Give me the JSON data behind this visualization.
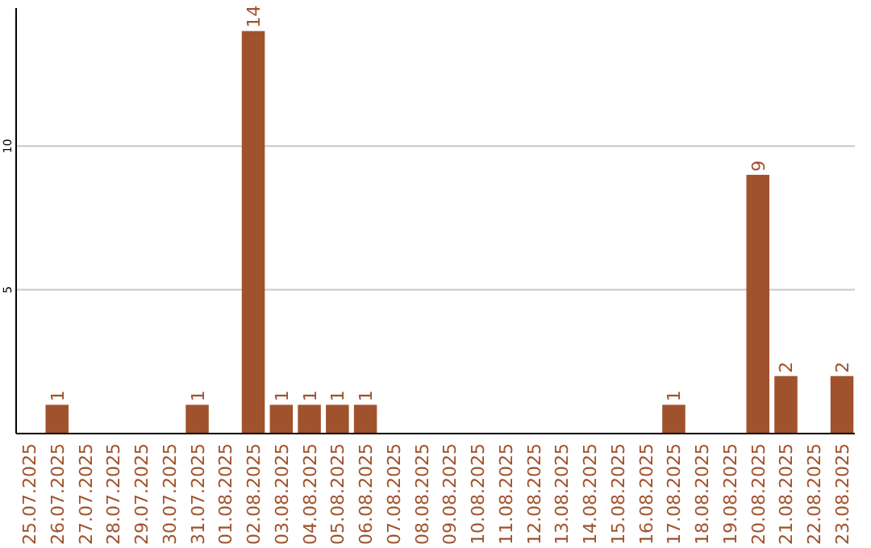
{
  "chart_data": {
    "type": "bar",
    "categories": [
      "25.07.2025",
      "26.07.2025",
      "27.07.2025",
      "28.07.2025",
      "29.07.2025",
      "30.07.2025",
      "31.07.2025",
      "01.08.2025",
      "02.08.2025",
      "03.08.2025",
      "04.08.2025",
      "05.08.2025",
      "06.08.2025",
      "07.08.2025",
      "08.08.2025",
      "09.08.2025",
      "10.08.2025",
      "11.08.2025",
      "12.08.2025",
      "13.08.2025",
      "14.08.2025",
      "15.08.2025",
      "16.08.2025",
      "17.08.2025",
      "18.08.2025",
      "19.08.2025",
      "20.08.2025",
      "21.08.2025",
      "22.08.2025",
      "23.08.2025"
    ],
    "values": [
      0,
      1,
      0,
      0,
      0,
      0,
      1,
      0,
      14,
      1,
      1,
      1,
      1,
      0,
      0,
      0,
      0,
      0,
      0,
      0,
      0,
      0,
      0,
      1,
      0,
      0,
      9,
      2,
      0,
      2
    ],
    "value_labels": [
      null,
      "1",
      null,
      null,
      null,
      null,
      "1",
      null,
      "14",
      "1",
      "1",
      "1",
      "1",
      null,
      null,
      null,
      null,
      null,
      null,
      null,
      null,
      null,
      null,
      "1",
      null,
      null,
      "9",
      "2",
      null,
      "2"
    ],
    "color": "#a0522d",
    "ylim": [
      0,
      14.8
    ],
    "yticks": [
      5,
      10
    ],
    "grid": "y"
  }
}
